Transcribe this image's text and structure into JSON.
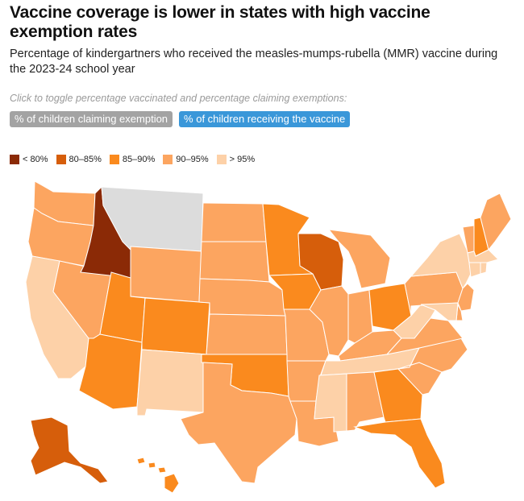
{
  "header": {
    "title": "Vaccine coverage is lower in states with high vaccine exemption rates",
    "subtitle": "Percentage of kindergartners who received the measles-mumps-rubella (MMR) vaccine during the 2023-24 school year"
  },
  "controls": {
    "hint": "Click to toggle percentage vaccinated and percentage claiming exemptions:",
    "exemption_label": "% of children claiming exemption",
    "vaccine_label": "% of children receiving the vaccine",
    "selected": "vaccine"
  },
  "legend": [
    {
      "label": "< 80%",
      "color": "#8b2a06"
    },
    {
      "label": "80–85%",
      "color": "#d65e0b"
    },
    {
      "label": "85–90%",
      "color": "#fa8a1e"
    },
    {
      "label": "90–95%",
      "color": "#fca560"
    },
    {
      "label": "> 95%",
      "color": "#fdd1a8"
    }
  ],
  "no_data_color": "#dcdcdc",
  "states": [
    {
      "id": "WA",
      "bin": 3
    },
    {
      "id": "OR",
      "bin": 3
    },
    {
      "id": "CA",
      "bin": 4
    },
    {
      "id": "NV",
      "bin": 3
    },
    {
      "id": "ID",
      "bin": 0
    },
    {
      "id": "MT",
      "bin": null
    },
    {
      "id": "WY",
      "bin": 3
    },
    {
      "id": "UT",
      "bin": 2
    },
    {
      "id": "AZ",
      "bin": 2
    },
    {
      "id": "CO",
      "bin": 2
    },
    {
      "id": "NM",
      "bin": 4
    },
    {
      "id": "ND",
      "bin": 3
    },
    {
      "id": "SD",
      "bin": 3
    },
    {
      "id": "NE",
      "bin": 3
    },
    {
      "id": "KS",
      "bin": 3
    },
    {
      "id": "OK",
      "bin": 2
    },
    {
      "id": "TX",
      "bin": 3
    },
    {
      "id": "MN",
      "bin": 2
    },
    {
      "id": "IA",
      "bin": 2
    },
    {
      "id": "MO",
      "bin": 3
    },
    {
      "id": "AR",
      "bin": 3
    },
    {
      "id": "LA",
      "bin": 3
    },
    {
      "id": "WI",
      "bin": 1
    },
    {
      "id": "IL",
      "bin": 3
    },
    {
      "id": "MI",
      "bin": 3
    },
    {
      "id": "IN",
      "bin": 3
    },
    {
      "id": "OH",
      "bin": 2
    },
    {
      "id": "KY",
      "bin": 3
    },
    {
      "id": "TN",
      "bin": 4
    },
    {
      "id": "MS",
      "bin": 4
    },
    {
      "id": "AL",
      "bin": 3
    },
    {
      "id": "GA",
      "bin": 2
    },
    {
      "id": "FL",
      "bin": 2
    },
    {
      "id": "SC",
      "bin": 3
    },
    {
      "id": "NC",
      "bin": 3
    },
    {
      "id": "VA",
      "bin": 3
    },
    {
      "id": "WV",
      "bin": 4
    },
    {
      "id": "PA",
      "bin": 3
    },
    {
      "id": "NY",
      "bin": 4
    },
    {
      "id": "VT",
      "bin": 3
    },
    {
      "id": "NH",
      "bin": 2
    },
    {
      "id": "ME",
      "bin": 3
    },
    {
      "id": "MA",
      "bin": 4
    },
    {
      "id": "CT",
      "bin": 4
    },
    {
      "id": "RI",
      "bin": 4
    },
    {
      "id": "NJ",
      "bin": 3
    },
    {
      "id": "DE",
      "bin": 3
    },
    {
      "id": "MD",
      "bin": 4
    },
    {
      "id": "AK",
      "bin": 1
    },
    {
      "id": "HI",
      "bin": 2
    }
  ]
}
